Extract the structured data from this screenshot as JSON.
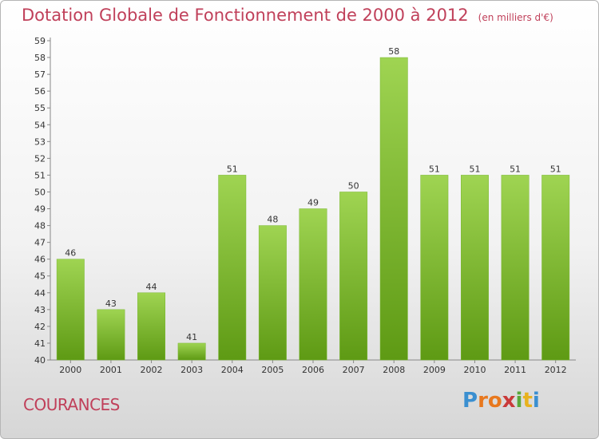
{
  "header": {
    "title": "Dotation Globale de Fonctionnement de 2000 à 2012",
    "unit": "(en milliers d'€)"
  },
  "footer": {
    "commune": "COURANCES",
    "logo": [
      "P",
      "r",
      "o",
      "x",
      "i",
      "t",
      "i"
    ],
    "logo_colors": [
      "#3a8fd0",
      "#e8781e",
      "#e8781e",
      "#c93a3a",
      "#5aa83a",
      "#e8b21e",
      "#3a8fd0"
    ]
  },
  "chart_data": {
    "type": "bar",
    "categories": [
      "2000",
      "2001",
      "2002",
      "2003",
      "2004",
      "2005",
      "2006",
      "2007",
      "2008",
      "2009",
      "2010",
      "2011",
      "2012"
    ],
    "values": [
      46,
      43,
      44,
      41,
      51,
      48,
      49,
      50,
      58,
      51,
      51,
      51,
      51
    ],
    "data_labels": [
      "46",
      "43",
      "44",
      "41",
      "51",
      "48",
      "49",
      "50",
      "58",
      "51",
      "51",
      "51",
      "51"
    ],
    "title": "Dotation Globale de Fonctionnement de 2000 à 2012",
    "ylim": [
      40,
      59
    ],
    "yticks": [
      "40",
      "41",
      "42",
      "43",
      "44",
      "45",
      "46",
      "47",
      "48",
      "49",
      "50",
      "51",
      "52",
      "53",
      "54",
      "55",
      "56",
      "57",
      "58",
      "59"
    ],
    "grid": false,
    "colors": {
      "bar_top": "#9fd452",
      "bar_bottom": "#5e9a14",
      "axis": "#888888",
      "text": "#333333"
    }
  }
}
